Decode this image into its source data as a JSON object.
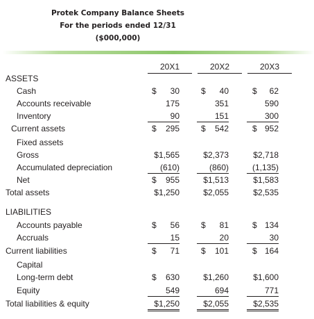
{
  "title": {
    "line1": "Protek Company Balance Sheets",
    "line2": "For the periods ended 12/31",
    "line3": "($000,000)"
  },
  "columns": [
    "20X1",
    "20X2",
    "20X3"
  ],
  "sections": {
    "assets": "ASSETS",
    "liabilities": "LIABILITIES"
  },
  "rows": [
    {
      "label": "Cash",
      "v": [
        "30",
        "40",
        "62"
      ],
      "cur": [
        "$",
        "$",
        "$"
      ]
    },
    {
      "label": "Accounts receivable",
      "v": [
        "175",
        "351",
        "590"
      ]
    },
    {
      "label": "Inventory",
      "v": [
        "90",
        "151",
        "300"
      ]
    },
    {
      "label": "Current assets",
      "v": [
        "295",
        "542",
        "952"
      ],
      "cur": [
        "$",
        "$",
        "$"
      ]
    },
    {
      "label": "Fixed assets"
    },
    {
      "label": "Gross",
      "v": [
        "$1,565",
        "$2,373",
        "$2,718"
      ]
    },
    {
      "label": "Accumulated depreciation",
      "v": [
        "(610)",
        "(860)",
        "(1,135)"
      ]
    },
    {
      "label": "Net",
      "v": [
        "955",
        "$1,513",
        "$1,583"
      ],
      "cur": [
        "$",
        "",
        ""
      ]
    },
    {
      "label": "Total assets",
      "v": [
        "$1,250",
        "$2,055",
        "$2,535"
      ]
    },
    {
      "label": "Accounts payable",
      "v": [
        "56",
        "81",
        "134"
      ],
      "cur": [
        "$",
        "$",
        "$"
      ]
    },
    {
      "label": "Accruals",
      "v": [
        "15",
        "20",
        "30"
      ]
    },
    {
      "label": "Current liabilities",
      "v": [
        "71",
        "101",
        "164"
      ],
      "cur": [
        "$",
        "$",
        "$"
      ]
    },
    {
      "label": "Capital"
    },
    {
      "label": "Long-term debt",
      "v": [
        "630",
        "$1,260",
        "$1,600"
      ],
      "cur": [
        "$",
        "",
        ""
      ]
    },
    {
      "label": "Equity",
      "v": [
        "549",
        "694",
        "771"
      ]
    },
    {
      "label": "Total liabilities & equity",
      "v": [
        "$1,250",
        "$2,055",
        "$2,535"
      ]
    }
  ]
}
